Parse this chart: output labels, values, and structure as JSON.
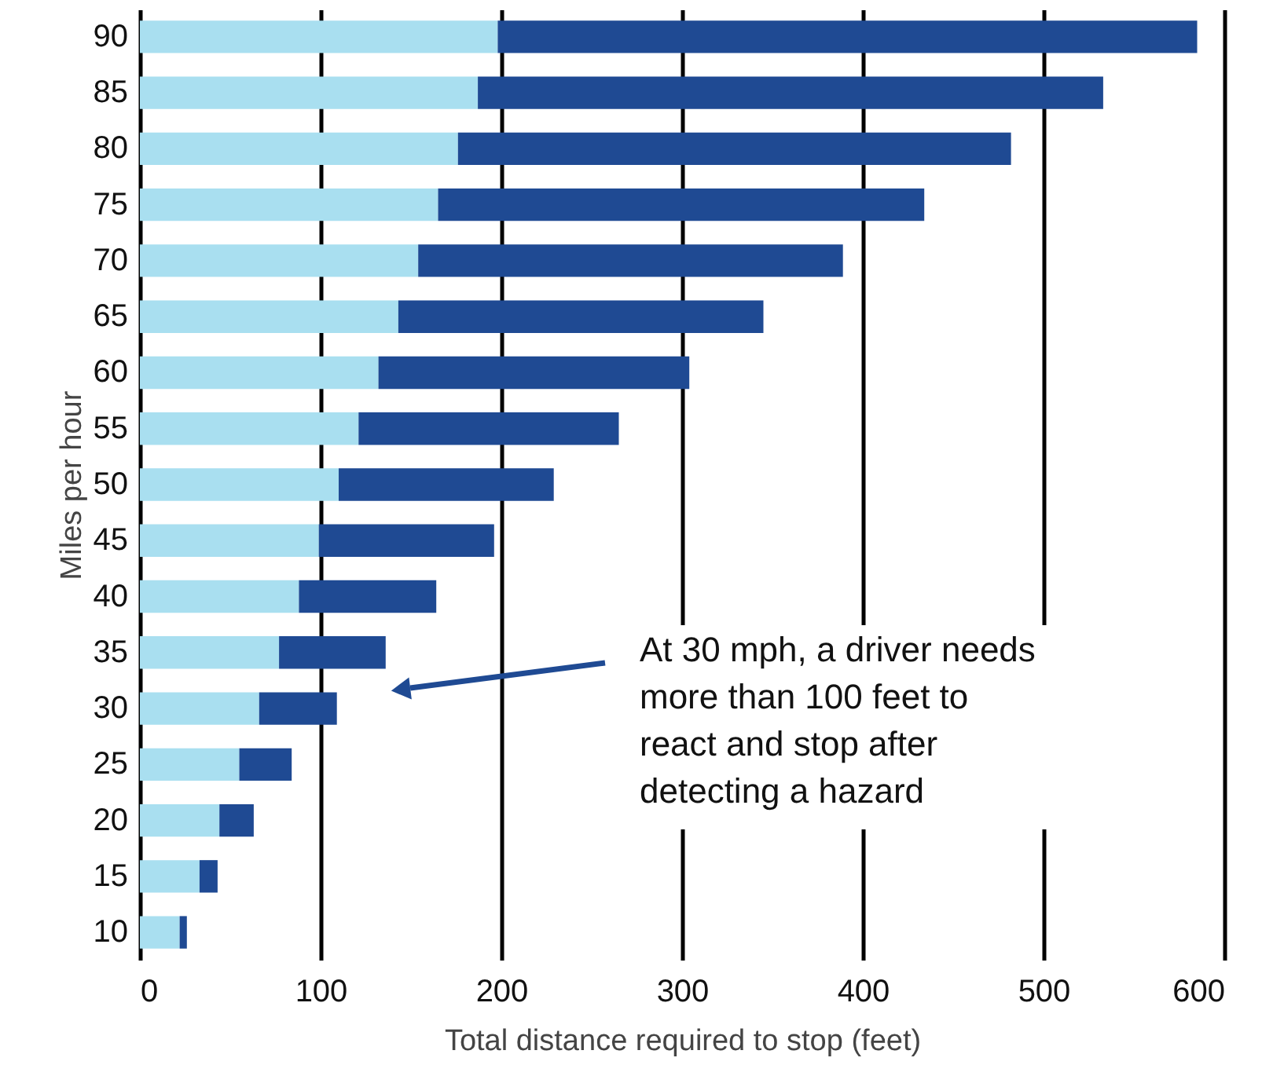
{
  "chart_data": {
    "type": "bar",
    "orientation": "horizontal",
    "stacked": true,
    "xlabel": "Total distance required to stop (feet)",
    "ylabel": "Miles per hour",
    "categories": [
      "90",
      "85",
      "80",
      "75",
      "70",
      "65",
      "60",
      "55",
      "50",
      "45",
      "40",
      "35",
      "30",
      "25",
      "20",
      "15",
      "10"
    ],
    "series": [
      {
        "color": "#a9dff0",
        "values": [
          198,
          187,
          176,
          165,
          154,
          143,
          132,
          121,
          110,
          99,
          88,
          77,
          66,
          55,
          44,
          33,
          22
        ]
      },
      {
        "color": "#1f4a93",
        "values": [
          387,
          346,
          306,
          269,
          235,
          202,
          172,
          144,
          119,
          97,
          76,
          59,
          43,
          29,
          19,
          10,
          4
        ]
      }
    ],
    "xlim": [
      0,
      600
    ],
    "xticks": [
      0,
      100,
      200,
      300,
      400,
      500,
      600
    ],
    "grid": "x",
    "legend": false,
    "annotations": [
      "At 30 mph, a driver needs more than 100 feet to react and stop after detecting a hazard"
    ]
  }
}
